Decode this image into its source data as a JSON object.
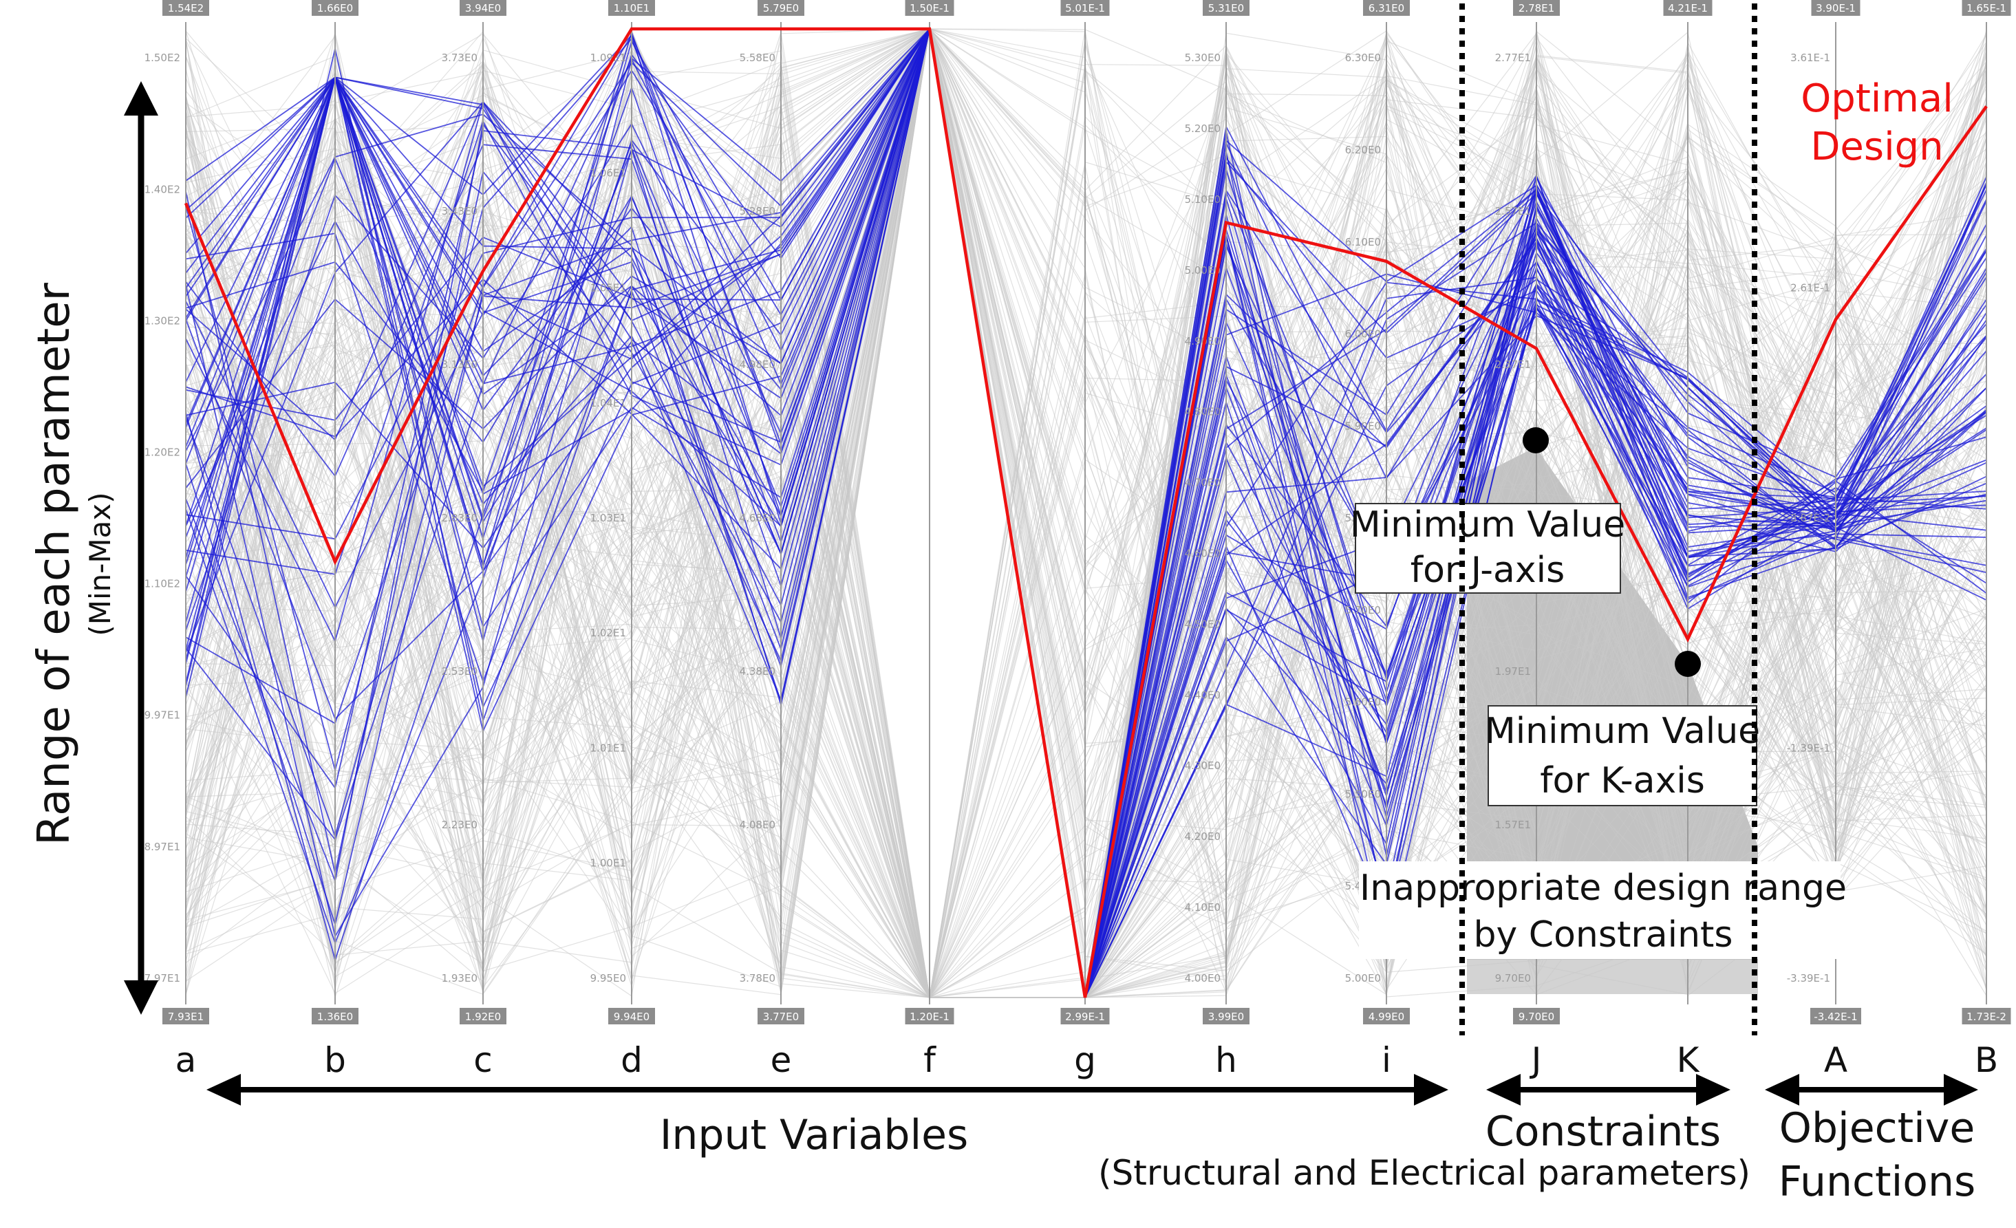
{
  "chart_data": {
    "type": "parallel_coordinates",
    "y_axis_label": "Range of each parameter",
    "y_axis_sublabel": "(Min-Max)",
    "axes": [
      {
        "key": "a",
        "label": "a",
        "max": "1.54E2",
        "min": "7.93E1",
        "ticks": [
          "1.50E2",
          "1.40E2",
          "1.30E2",
          "1.20E2",
          "1.10E2",
          "9.97E1",
          "8.97E1",
          "7.97E1"
        ]
      },
      {
        "key": "b",
        "label": "b",
        "max": "1.66E0",
        "min": "1.36E0",
        "ticks": []
      },
      {
        "key": "c",
        "label": "c",
        "max": "3.94E0",
        "min": "1.92E0",
        "ticks": [
          "3.73E0",
          "3.43E0",
          "3.13E0",
          "2.83E0",
          "2.53E0",
          "2.23E0",
          "1.93E0"
        ]
      },
      {
        "key": "d",
        "label": "d",
        "max": "1.10E1",
        "min": "9.94E0",
        "ticks": [
          "1.09E1",
          "1.06E1",
          "1.05E1",
          "1.04E1",
          "1.03E1",
          "1.02E1",
          "1.01E1",
          "1.00E1",
          "9.95E0"
        ]
      },
      {
        "key": "e",
        "label": "e",
        "max": "5.79E0",
        "min": "3.77E0",
        "ticks": [
          "5.58E0",
          "5.28E0",
          "4.98E0",
          "4.68E0",
          "4.38E0",
          "4.08E0",
          "3.78E0"
        ]
      },
      {
        "key": "f",
        "label": "f",
        "max": "1.50E-1",
        "min": "1.20E-1",
        "ticks": []
      },
      {
        "key": "g",
        "label": "g",
        "max": "5.01E-1",
        "min": "2.99E-1",
        "ticks": []
      },
      {
        "key": "h",
        "label": "h",
        "max": "5.31E0",
        "min": "3.99E0",
        "ticks": [
          "5.30E0",
          "5.20E0",
          "5.10E0",
          "5.00E0",
          "4.90E0",
          "4.80E0",
          "4.70E0",
          "4.60E0",
          "4.50E0",
          "4.40E0",
          "4.30E0",
          "4.20E0",
          "4.10E0",
          "4.00E0"
        ]
      },
      {
        "key": "i",
        "label": "i",
        "max": "6.31E0",
        "min": "4.99E0",
        "ticks": [
          "6.30E0",
          "6.20E0",
          "6.10E0",
          "6.00E0",
          "5.90E0",
          "5.80E0",
          "5.70E0",
          "5.60E0",
          "5.50E0",
          "5.40E0",
          "5.00E0"
        ]
      },
      {
        "key": "J",
        "label": "J",
        "max": "2.78E1",
        "min": "9.70E0",
        "ticks": [
          "2.77E1",
          "2.57E1",
          "2.37E1",
          "2.17E1",
          "1.97E1",
          "1.57E1",
          "9.70E0"
        ]
      },
      {
        "key": "K",
        "label": "K",
        "max": "4.21E-1",
        "min": "",
        "ticks": []
      },
      {
        "key": "A",
        "label": "A",
        "max": "3.90E-1",
        "min": "-3.42E-1",
        "ticks": [
          "3.61E-1",
          "2.61E-1",
          "-3.87E-2",
          "-1.39E-1",
          "-3.39E-1"
        ]
      },
      {
        "key": "B",
        "label": "B",
        "max": "1.65E-1",
        "min": "1.73E-2",
        "ticks": []
      }
    ],
    "optimal_design": {
      "a": 0.82,
      "b": 0.45,
      "c": 0.75,
      "d": 1.0,
      "e": 1.0,
      "f": 1.0,
      "g": 0.0,
      "h": 0.8,
      "i": 0.76,
      "J": 0.67,
      "K": 0.37,
      "A": 0.7,
      "B": 0.92
    },
    "series_colors": {
      "selected": "#1b1bd6",
      "optimal": "#ee1111",
      "other": "#c8c8c8"
    }
  },
  "annotations": {
    "optimal": [
      "Optimal",
      "Design"
    ],
    "min_j": [
      "Minimum Value",
      "for J-axis"
    ],
    "min_k": [
      "Minimum Value",
      "for K-axis"
    ],
    "inappropriate": [
      "Inappropriate design range",
      "by Constraints"
    ]
  },
  "groups": {
    "input": {
      "label": "Input Variables",
      "sublabel": "(Structural and Electrical parameters)"
    },
    "constraints": {
      "label": "Constraints"
    },
    "objectives": {
      "label": "Objective",
      "label2": "Functions"
    }
  }
}
